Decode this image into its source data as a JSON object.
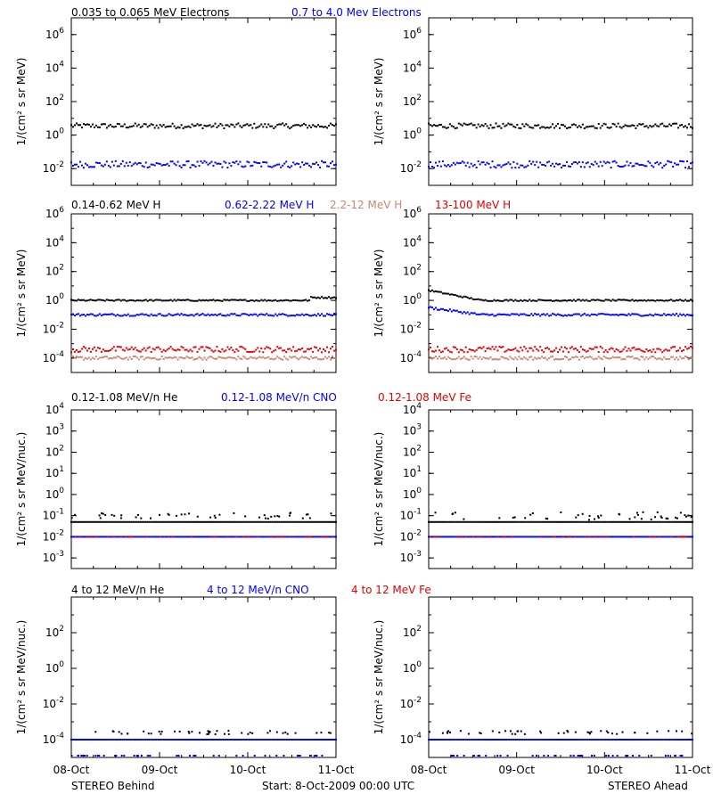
{
  "colors": {
    "black": "#000000",
    "blue": "#0000ff",
    "tan": "#c8876e",
    "red": "#e00000",
    "frame": "#000000"
  },
  "row_titles": [
    [
      {
        "text": "0.035 to 0.065 MeV Electrons",
        "color": "black"
      },
      {
        "text": "0.7 to 4.0 Mev Electrons",
        "color": "blue"
      }
    ],
    [
      {
        "text": "0.14-0.62 MeV H",
        "color": "black"
      },
      {
        "text": "0.62-2.22 MeV H",
        "color": "blue"
      },
      {
        "text": "2.2-12 MeV H",
        "color": "tan"
      },
      {
        "text": "13-100 MeV H",
        "color": "red"
      }
    ],
    [
      {
        "text": "0.12-1.08 MeV/n He",
        "color": "black"
      },
      {
        "text": "0.12-1.08 MeV/n CNO",
        "color": "blue"
      },
      {
        "text": "0.12-1.08 MeV Fe",
        "color": "red"
      }
    ],
    [
      {
        "text": "4 to 12 MeV/n He",
        "color": "black"
      },
      {
        "text": "4 to 12 MeV/n CNO",
        "color": "blue"
      },
      {
        "text": "4 to 12 MeV Fe",
        "color": "red"
      }
    ]
  ],
  "x_ticks": [
    "08-Oct",
    "09-Oct",
    "10-Oct",
    "11-Oct"
  ],
  "footer": {
    "left": "STEREO Behind",
    "center": "Start:  8-Oct-2009 00:00 UTC",
    "right": "STEREO Ahead"
  },
  "chart_data": [
    {
      "type": "scatter",
      "row": 0,
      "side": "STEREO Behind",
      "ylabel": "1/(cm² s sr MeV)",
      "log_y": true,
      "ylim_exp": [
        -3,
        7
      ],
      "y_ticks_exp": [
        -2,
        0,
        2,
        4,
        6
      ],
      "xlim_days": [
        0,
        3
      ],
      "series": [
        {
          "color": "black",
          "level_exp": 0.55,
          "spread": 0.15
        },
        {
          "color": "blue",
          "level_exp": -1.75,
          "spread": 0.2
        }
      ]
    },
    {
      "type": "scatter",
      "row": 0,
      "side": "STEREO Ahead",
      "ylabel": "1/(cm² s sr MeV)",
      "log_y": true,
      "ylim_exp": [
        -3,
        7
      ],
      "y_ticks_exp": [
        -2,
        0,
        2,
        4,
        6
      ],
      "xlim_days": [
        0,
        3
      ],
      "series": [
        {
          "color": "black",
          "level_exp": 0.55,
          "spread": 0.15
        },
        {
          "color": "blue",
          "level_exp": -1.75,
          "spread": 0.2
        }
      ]
    },
    {
      "type": "scatter",
      "row": 1,
      "side": "STEREO Behind",
      "ylabel": "1/(cm² s sr MeV)",
      "log_y": true,
      "ylim_exp": [
        -5,
        6
      ],
      "y_ticks_exp": [
        -4,
        -2,
        0,
        2,
        4,
        6
      ],
      "xlim_days": [
        0,
        3
      ],
      "series": [
        {
          "color": "black",
          "level_exp": 0.0,
          "spread": 0.05,
          "end_rise": 0.2
        },
        {
          "color": "blue",
          "level_exp": -1.0,
          "spread": 0.08
        },
        {
          "color": "tan",
          "level_exp": -4.0,
          "spread": 0.12
        },
        {
          "color": "red",
          "level_exp": -3.4,
          "spread": 0.2
        }
      ]
    },
    {
      "type": "scatter",
      "row": 1,
      "side": "STEREO Ahead",
      "ylabel": "1/(cm² s sr MeV)",
      "log_y": true,
      "ylim_exp": [
        -5,
        6
      ],
      "y_ticks_exp": [
        -4,
        -2,
        0,
        2,
        4,
        6
      ],
      "xlim_days": [
        0,
        3
      ],
      "series": [
        {
          "color": "black",
          "level_exp": 0.0,
          "spread": 0.05,
          "start_level_exp": 0.7
        },
        {
          "color": "blue",
          "level_exp": -1.0,
          "spread": 0.08,
          "start_level_exp": -0.5
        },
        {
          "color": "tan",
          "level_exp": -4.0,
          "spread": 0.12
        },
        {
          "color": "red",
          "level_exp": -3.4,
          "spread": 0.2
        }
      ]
    },
    {
      "type": "scatter",
      "row": 2,
      "side": "STEREO Behind",
      "ylabel": "1/(cm² s sr MeV/nuc.)",
      "log_y": true,
      "ylim_exp": [
        -3.5,
        4
      ],
      "y_ticks_exp": [
        -3,
        -2,
        -1,
        0,
        1,
        2,
        3,
        4
      ],
      "xlim_days": [
        0,
        3
      ],
      "series": [
        {
          "color": "black",
          "level_exp": -1.3,
          "spread": 0.0
        },
        {
          "color": "black",
          "level_exp": -1.0,
          "spread": 0.15,
          "sparse": true
        },
        {
          "color": "blue",
          "level_exp": -2.0,
          "spread": 0.0
        },
        {
          "color": "red",
          "level_exp": -2.0,
          "spread": 0.0,
          "sparse": true
        }
      ]
    },
    {
      "type": "scatter",
      "row": 2,
      "side": "STEREO Ahead",
      "ylabel": "1/(cm² s sr MeV/nuc.)",
      "log_y": true,
      "ylim_exp": [
        -3.5,
        4
      ],
      "y_ticks_exp": [
        -3,
        -2,
        -1,
        0,
        1,
        2,
        3,
        4
      ],
      "xlim_days": [
        0,
        3
      ],
      "series": [
        {
          "color": "black",
          "level_exp": -1.3,
          "spread": 0.0
        },
        {
          "color": "black",
          "level_exp": -1.0,
          "spread": 0.2,
          "sparse": true
        },
        {
          "color": "blue",
          "level_exp": -2.0,
          "spread": 0.0
        },
        {
          "color": "red",
          "level_exp": -2.0,
          "spread": 0.0,
          "sparse": true
        }
      ]
    },
    {
      "type": "scatter",
      "row": 3,
      "side": "STEREO Behind",
      "ylabel": "1/(cm² s sr MeV/nuc.)",
      "log_y": true,
      "ylim_exp": [
        -5,
        4
      ],
      "y_ticks_exp": [
        -4,
        -2,
        0,
        2
      ],
      "xlim_days": [
        0,
        3
      ],
      "series": [
        {
          "color": "blue",
          "level_exp": -4.0,
          "spread": 0.0
        },
        {
          "color": "black",
          "level_exp": -3.6,
          "spread": 0.1,
          "sparse": true
        },
        {
          "color": "blue",
          "level_exp": -4.9,
          "spread": 0.0,
          "sparse": true
        }
      ]
    },
    {
      "type": "scatter",
      "row": 3,
      "side": "STEREO Ahead",
      "ylabel": "1/(cm² s sr MeV/nuc.)",
      "log_y": true,
      "ylim_exp": [
        -5,
        4
      ],
      "y_ticks_exp": [
        -4,
        -2,
        0,
        2
      ],
      "xlim_days": [
        0,
        3
      ],
      "series": [
        {
          "color": "blue",
          "level_exp": -4.0,
          "spread": 0.0
        },
        {
          "color": "black",
          "level_exp": -3.6,
          "spread": 0.1,
          "sparse": true
        },
        {
          "color": "blue",
          "level_exp": -4.9,
          "spread": 0.0,
          "sparse": true
        }
      ]
    }
  ]
}
